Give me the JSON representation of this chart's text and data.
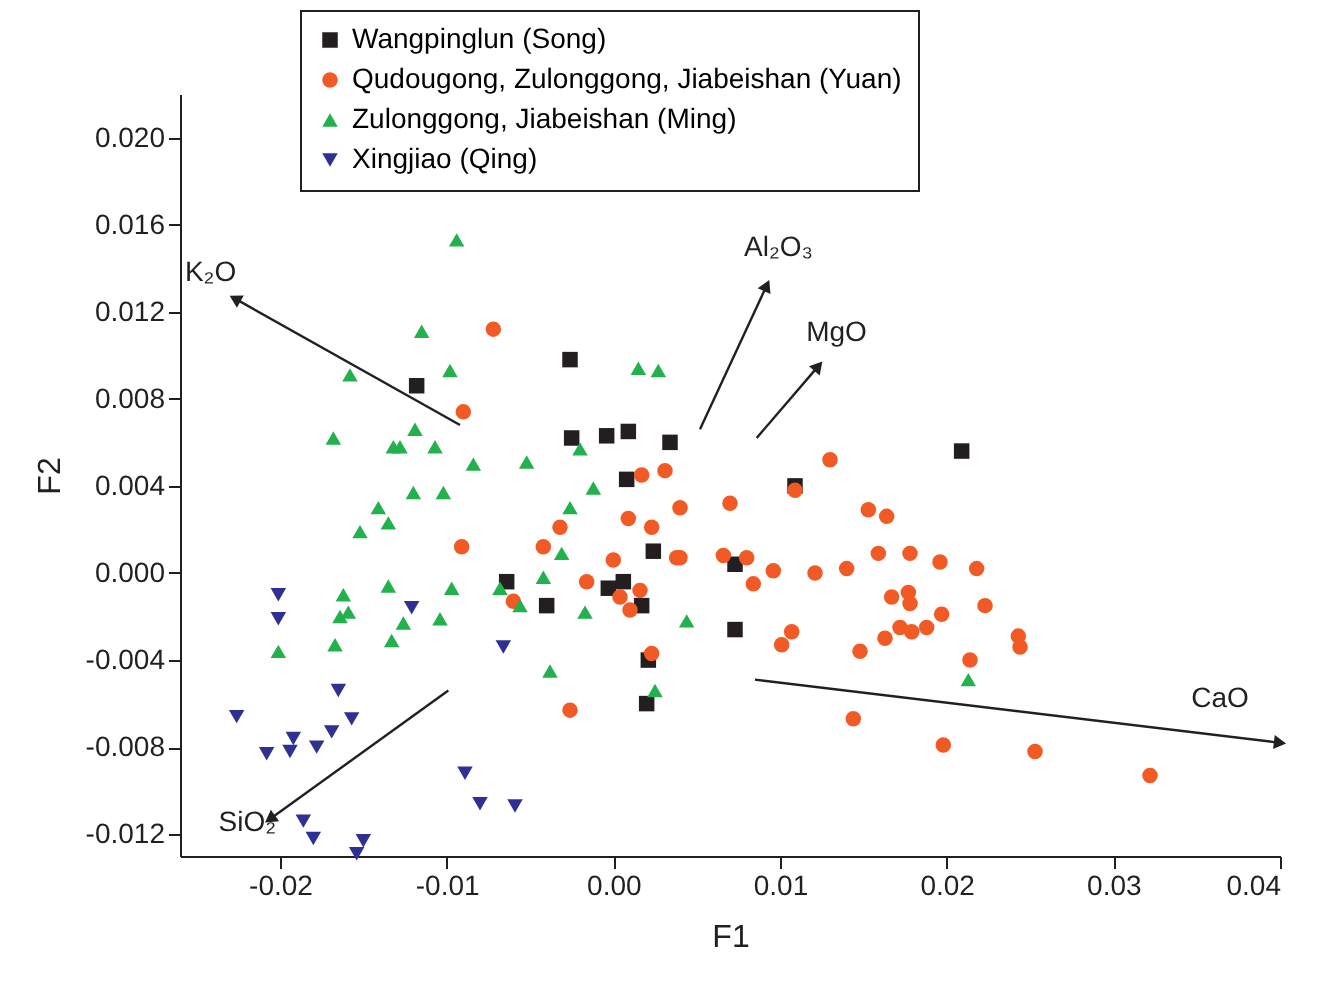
{
  "chart_data": {
    "type": "scatter",
    "xlabel": "F1",
    "ylabel": "F2",
    "xlim": [
      -0.026,
      0.04
    ],
    "ylim": [
      -0.013,
      0.022
    ],
    "xticks": [
      -0.02,
      -0.01,
      {
        "value": 0,
        "label": "0.00"
      },
      0.01,
      0.02,
      0.03,
      0.04
    ],
    "yticks": [
      -0.012,
      -0.008,
      -0.004,
      {
        "value": 0,
        "label": "0.000"
      },
      0.004,
      0.008,
      0.012,
      0.016,
      {
        "value": 0.02,
        "label": "0.020"
      }
    ],
    "legend": "top",
    "series": [
      {
        "name": "Wangpinglun (Song)",
        "color": "#231f20",
        "marker": "square",
        "x": [
          -0.0118,
          -0.0026,
          -0.0025,
          -0.0004,
          0.0009,
          0.0034,
          0.0008,
          0.0024,
          0.0073,
          0.0073,
          -0.0064,
          -0.004,
          -0.0003,
          0.0006,
          0.0017,
          0.0021,
          0.002,
          0.0209,
          0.0109
        ],
        "values": [
          0.0086,
          0.0098,
          0.0062,
          0.0063,
          0.0065,
          0.006,
          0.0043,
          0.001,
          0.0004,
          -0.0026,
          -0.0004,
          -0.0015,
          -0.0007,
          -0.0004,
          -0.0015,
          -0.004,
          -0.006,
          0.0056,
          0.004
        ]
      },
      {
        "name": "Qudougong, Zulonggong, Jiabeishan (Yuan)",
        "color": "#f15a24",
        "marker": "circle",
        "x": [
          -0.0072,
          -0.009,
          -0.0032,
          -0.0091,
          -0.0042,
          -0.0016,
          -0.006,
          -0.0026,
          0.0017,
          0.0031,
          0.004,
          0.0009,
          0.0023,
          0.007,
          0.0,
          0.0038,
          0.004,
          0.0066,
          0.008,
          0.0096,
          0.0084,
          0.0004,
          0.0016,
          0.001,
          0.0023,
          0.0101,
          0.013,
          0.0109,
          0.0153,
          0.0164,
          0.0121,
          0.014,
          0.0159,
          0.0178,
          0.0196,
          0.0218,
          0.0167,
          0.0177,
          0.0178,
          0.0223,
          0.0197,
          0.0172,
          0.0179,
          0.0188,
          0.0163,
          0.0107,
          0.0148,
          0.0243,
          0.0244,
          0.0214,
          0.0144,
          0.0198,
          0.0253,
          0.0322
        ],
        "values": [
          0.0112,
          0.0074,
          0.0021,
          0.0012,
          0.0012,
          -0.0004,
          -0.0013,
          -0.0063,
          0.0045,
          0.0047,
          0.003,
          0.0025,
          0.0021,
          0.0032,
          0.0006,
          0.0007,
          0.0007,
          0.0008,
          0.0007,
          0.0001,
          -0.0005,
          -0.0011,
          -0.0008,
          -0.0017,
          -0.0037,
          -0.0033,
          0.0052,
          0.0038,
          0.0029,
          0.0026,
          0.0,
          0.0002,
          0.0009,
          0.0009,
          0.0005,
          0.0002,
          -0.0011,
          -0.0009,
          -0.0014,
          -0.0015,
          -0.0019,
          -0.0025,
          -0.0027,
          -0.0025,
          -0.003,
          -0.0027,
          -0.0036,
          -0.0029,
          -0.0034,
          -0.004,
          -0.0067,
          -0.0079,
          -0.0082,
          -0.0093
        ]
      },
      {
        "name": "Zulonggong, Jiabeishan (Ming)",
        "color": "#22b14c",
        "marker": "triangle",
        "x": [
          -0.0094,
          -0.0115,
          -0.0098,
          -0.0158,
          -0.0119,
          -0.0168,
          -0.0132,
          -0.0128,
          -0.0107,
          -0.0084,
          -0.0052,
          -0.002,
          -0.0012,
          -0.012,
          -0.0102,
          -0.0026,
          -0.0141,
          -0.0135,
          -0.0152,
          -0.0031,
          -0.0042,
          -0.0135,
          -0.0097,
          -0.0068,
          -0.0056,
          -0.0017,
          -0.0162,
          -0.0164,
          -0.0159,
          -0.0126,
          -0.0104,
          -0.0201,
          -0.0167,
          -0.0133,
          -0.0038,
          0.0015,
          0.0027,
          0.0044,
          0.0025,
          0.0213
        ],
        "values": [
          0.0153,
          0.0111,
          0.0093,
          0.0091,
          0.0066,
          0.0062,
          0.0058,
          0.0058,
          0.0058,
          0.005,
          0.0051,
          0.0057,
          0.0039,
          0.0037,
          0.0037,
          0.003,
          0.003,
          0.0023,
          0.0019,
          0.0009,
          -0.0002,
          -0.0006,
          -0.0007,
          -0.0007,
          -0.0015,
          -0.0018,
          -0.001,
          -0.002,
          -0.0018,
          -0.0023,
          -0.0021,
          -0.0036,
          -0.0033,
          -0.0031,
          -0.0045,
          0.0094,
          0.0093,
          -0.0022,
          -0.0054,
          -0.0049
        ]
      },
      {
        "name": "Xingjiao (Qing)",
        "color": "#2e3192",
        "marker": "triangle-down",
        "x": [
          -0.0201,
          -0.0201,
          -0.0121,
          -0.0066,
          -0.0165,
          -0.0226,
          -0.0157,
          -0.0169,
          -0.0192,
          -0.0194,
          -0.0208,
          -0.0178,
          -0.0089,
          -0.008,
          -0.0059,
          -0.0186,
          -0.018,
          -0.015,
          -0.0154
        ],
        "values": [
          -0.001,
          -0.0021,
          -0.0016,
          -0.0034,
          -0.0054,
          -0.0066,
          -0.0067,
          -0.0073,
          -0.0076,
          -0.0082,
          -0.0083,
          -0.008,
          -0.0092,
          -0.0106,
          -0.0107,
          -0.0114,
          -0.0122,
          -0.0123,
          -0.0129
        ]
      },
      {
        "name": "K₂O",
        "type": "line",
        "color": "#231f20",
        "x": [
          -0.0092,
          -0.0227
        ],
        "values": [
          0.0068,
          0.0126
        ]
      },
      {
        "name": "Al₂O₃",
        "type": "line",
        "color": "#231f20",
        "x": [
          0.0052,
          0.0092
        ],
        "values": [
          0.0066,
          0.0132
        ]
      },
      {
        "name": "MgO",
        "type": "line",
        "color": "#231f20",
        "x": [
          0.0086,
          0.0123
        ],
        "values": [
          0.0062,
          0.0095
        ]
      },
      {
        "name": "CaO",
        "type": "line",
        "color": "#231f20",
        "x": [
          0.0085,
          0.04
        ],
        "values": [
          -0.0049,
          -0.0078
        ]
      },
      {
        "name": "SiO₂",
        "type": "line",
        "color": "#231f20",
        "x": [
          -0.0099,
          -0.0206
        ],
        "values": [
          -0.0054,
          -0.0113
        ]
      }
    ]
  }
}
